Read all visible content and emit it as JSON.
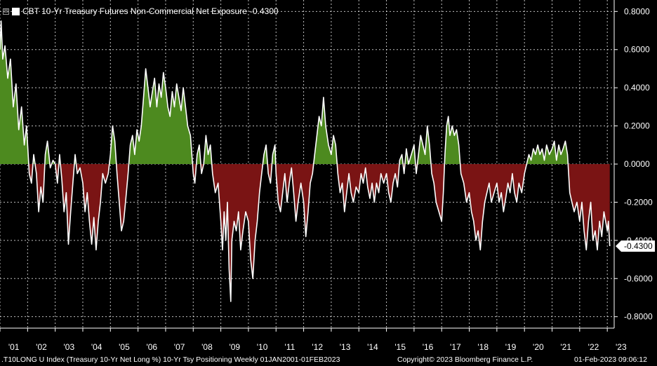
{
  "legend": {
    "checkbox_glyph": "⊞",
    "title": "CBT 10-Yr Treasury Futures Non-Commercial Net Exposure",
    "last_value": "-0.4300"
  },
  "footer": {
    "index": ".T10LONG U Index (Treasury 10-Yr Net Long %) 10-Yr Tsy Positioning  Weekly 01JAN2001-01FEB2023",
    "copyright": "Copyright© 2023 Bloomberg Finance L.P.",
    "timestamp": "01-Feb-2023 09:06:12"
  },
  "colors": {
    "positive_fill": "#4d8a1f",
    "negative_fill": "#7a1414",
    "line": "#ffffff",
    "grid": "#ffffff",
    "background": "#000000"
  },
  "chart_data": {
    "type": "area",
    "title": "CBT 10-Yr Treasury Futures Non-Commercial Net Exposure",
    "last_value_label": "-0.4300",
    "last_value": -0.43,
    "xlabel": "",
    "ylabel": "",
    "xlim": [
      2001.0,
      2023.25
    ],
    "ylim": [
      -0.86,
      0.86
    ],
    "grid": true,
    "y_ticks": [
      0.8,
      0.6,
      0.4,
      0.2,
      0.0,
      -0.2,
      -0.4,
      -0.6,
      -0.8
    ],
    "y_tick_labels": [
      "0.8000",
      "0.6000",
      "0.4000",
      "0.2000",
      "0.0000",
      "-0.2000",
      "-0.4000",
      "-0.6000",
      "-0.8000"
    ],
    "x_tick_labels": [
      "'01",
      "'02",
      "'03",
      "'04",
      "'05",
      "'06",
      "'07",
      "'08",
      "'09",
      "'10",
      "'11",
      "'12",
      "'13",
      "'14",
      "'15",
      "'16",
      "'17",
      "'18",
      "'19",
      "'20",
      "'21",
      "'22",
      "'23"
    ],
    "x_tick_years": [
      2001,
      2002,
      2003,
      2004,
      2005,
      2006,
      2007,
      2008,
      2009,
      2010,
      2011,
      2012,
      2013,
      2014,
      2015,
      2016,
      2017,
      2018,
      2019,
      2020,
      2021,
      2022,
      2023
    ],
    "series": [
      {
        "values": [
          [
            2001.0,
            0.6
          ],
          [
            2001.04,
            0.75
          ],
          [
            2001.1,
            0.55
          ],
          [
            2001.18,
            0.62
          ],
          [
            2001.28,
            0.45
          ],
          [
            2001.38,
            0.55
          ],
          [
            2001.48,
            0.3
          ],
          [
            2001.58,
            0.42
          ],
          [
            2001.68,
            0.18
          ],
          [
            2001.78,
            0.3
          ],
          [
            2001.88,
            0.1
          ],
          [
            2001.96,
            0.2
          ],
          [
            2002.06,
            -0.05
          ],
          [
            2002.14,
            -0.1
          ],
          [
            2002.22,
            0.05
          ],
          [
            2002.32,
            -0.05
          ],
          [
            2002.4,
            -0.25
          ],
          [
            2002.48,
            -0.12
          ],
          [
            2002.56,
            -0.2
          ],
          [
            2002.64,
            0.05
          ],
          [
            2002.72,
            0.12
          ],
          [
            2002.82,
            -0.02
          ],
          [
            2002.92,
            0.02
          ],
          [
            2003.0,
            0.0
          ],
          [
            2003.08,
            -0.1
          ],
          [
            2003.16,
            0.05
          ],
          [
            2003.24,
            -0.08
          ],
          [
            2003.32,
            -0.25
          ],
          [
            2003.4,
            -0.15
          ],
          [
            2003.48,
            -0.42
          ],
          [
            2003.56,
            -0.25
          ],
          [
            2003.64,
            -0.1
          ],
          [
            2003.72,
            0.05
          ],
          [
            2003.8,
            -0.05
          ],
          [
            2003.9,
            -0.02
          ],
          [
            2004.0,
            -0.1
          ],
          [
            2004.08,
            -0.25
          ],
          [
            2004.16,
            -0.15
          ],
          [
            2004.24,
            -0.3
          ],
          [
            2004.32,
            -0.42
          ],
          [
            2004.4,
            -0.28
          ],
          [
            2004.48,
            -0.45
          ],
          [
            2004.56,
            -0.3
          ],
          [
            2004.64,
            -0.2
          ],
          [
            2004.72,
            -0.05
          ],
          [
            2004.82,
            -0.1
          ],
          [
            2004.92,
            -0.05
          ],
          [
            2005.0,
            0.05
          ],
          [
            2005.08,
            0.2
          ],
          [
            2005.16,
            0.12
          ],
          [
            2005.24,
            -0.05
          ],
          [
            2005.32,
            -0.2
          ],
          [
            2005.4,
            -0.35
          ],
          [
            2005.48,
            -0.3
          ],
          [
            2005.56,
            -0.18
          ],
          [
            2005.64,
            -0.05
          ],
          [
            2005.72,
            0.1
          ],
          [
            2005.8,
            0.15
          ],
          [
            2005.88,
            0.05
          ],
          [
            2005.96,
            0.18
          ],
          [
            2006.04,
            0.12
          ],
          [
            2006.12,
            0.2
          ],
          [
            2006.2,
            0.35
          ],
          [
            2006.28,
            0.5
          ],
          [
            2006.36,
            0.4
          ],
          [
            2006.44,
            0.3
          ],
          [
            2006.52,
            0.38
          ],
          [
            2006.6,
            0.45
          ],
          [
            2006.68,
            0.3
          ],
          [
            2006.76,
            0.42
          ],
          [
            2006.84,
            0.35
          ],
          [
            2006.92,
            0.48
          ],
          [
            2007.0,
            0.4
          ],
          [
            2007.08,
            0.3
          ],
          [
            2007.16,
            0.25
          ],
          [
            2007.24,
            0.38
          ],
          [
            2007.32,
            0.3
          ],
          [
            2007.4,
            0.42
          ],
          [
            2007.48,
            0.35
          ],
          [
            2007.56,
            0.28
          ],
          [
            2007.64,
            0.4
          ],
          [
            2007.72,
            0.3
          ],
          [
            2007.8,
            0.2
          ],
          [
            2007.9,
            0.15
          ],
          [
            2008.0,
            -0.05
          ],
          [
            2008.06,
            -0.1
          ],
          [
            2008.14,
            0.05
          ],
          [
            2008.22,
            0.1
          ],
          [
            2008.3,
            -0.05
          ],
          [
            2008.38,
            0.0
          ],
          [
            2008.46,
            0.15
          ],
          [
            2008.54,
            0.05
          ],
          [
            2008.62,
            0.1
          ],
          [
            2008.7,
            -0.05
          ],
          [
            2008.8,
            -0.15
          ],
          [
            2008.9,
            -0.1
          ],
          [
            2009.0,
            -0.3
          ],
          [
            2009.06,
            -0.45
          ],
          [
            2009.12,
            -0.25
          ],
          [
            2009.18,
            -0.4
          ],
          [
            2009.24,
            -0.2
          ],
          [
            2009.3,
            -0.55
          ],
          [
            2009.36,
            -0.72
          ],
          [
            2009.4,
            -0.4
          ],
          [
            2009.48,
            -0.3
          ],
          [
            2009.56,
            -0.35
          ],
          [
            2009.64,
            -0.25
          ],
          [
            2009.72,
            -0.45
          ],
          [
            2009.8,
            -0.35
          ],
          [
            2009.9,
            -0.25
          ],
          [
            2010.0,
            -0.3
          ],
          [
            2010.08,
            -0.5
          ],
          [
            2010.16,
            -0.6
          ],
          [
            2010.24,
            -0.4
          ],
          [
            2010.32,
            -0.3
          ],
          [
            2010.4,
            -0.15
          ],
          [
            2010.48,
            -0.05
          ],
          [
            2010.56,
            0.05
          ],
          [
            2010.64,
            0.1
          ],
          [
            2010.72,
            -0.05
          ],
          [
            2010.8,
            -0.1
          ],
          [
            2010.88,
            0.05
          ],
          [
            2010.96,
            0.1
          ],
          [
            2011.0,
            -0.05
          ],
          [
            2011.08,
            -0.2
          ],
          [
            2011.16,
            -0.25
          ],
          [
            2011.24,
            -0.15
          ],
          [
            2011.32,
            -0.05
          ],
          [
            2011.4,
            -0.2
          ],
          [
            2011.48,
            -0.1
          ],
          [
            2011.56,
            -0.02
          ],
          [
            2011.64,
            -0.15
          ],
          [
            2011.72,
            -0.3
          ],
          [
            2011.8,
            -0.2
          ],
          [
            2011.9,
            -0.1
          ],
          [
            2012.0,
            -0.2
          ],
          [
            2012.08,
            -0.38
          ],
          [
            2012.16,
            -0.25
          ],
          [
            2012.24,
            -0.1
          ],
          [
            2012.32,
            -0.05
          ],
          [
            2012.4,
            0.05
          ],
          [
            2012.48,
            0.15
          ],
          [
            2012.56,
            0.25
          ],
          [
            2012.64,
            0.2
          ],
          [
            2012.72,
            0.35
          ],
          [
            2012.8,
            0.2
          ],
          [
            2012.9,
            0.1
          ],
          [
            2013.0,
            0.05
          ],
          [
            2013.08,
            0.15
          ],
          [
            2013.16,
            0.1
          ],
          [
            2013.24,
            -0.05
          ],
          [
            2013.32,
            -0.15
          ],
          [
            2013.4,
            -0.1
          ],
          [
            2013.48,
            -0.25
          ],
          [
            2013.56,
            -0.15
          ],
          [
            2013.64,
            -0.05
          ],
          [
            2013.72,
            -0.15
          ],
          [
            2013.8,
            -0.2
          ],
          [
            2013.9,
            -0.12
          ],
          [
            2014.0,
            -0.15
          ],
          [
            2014.08,
            -0.05
          ],
          [
            2014.16,
            -0.1
          ],
          [
            2014.24,
            -0.02
          ],
          [
            2014.32,
            -0.12
          ],
          [
            2014.4,
            -0.18
          ],
          [
            2014.48,
            -0.1
          ],
          [
            2014.56,
            -0.2
          ],
          [
            2014.64,
            -0.1
          ],
          [
            2014.72,
            -0.15
          ],
          [
            2014.8,
            -0.05
          ],
          [
            2014.9,
            -0.1
          ],
          [
            2015.0,
            -0.05
          ],
          [
            2015.08,
            -0.15
          ],
          [
            2015.16,
            -0.2
          ],
          [
            2015.24,
            -0.1
          ],
          [
            2015.32,
            -0.05
          ],
          [
            2015.4,
            -0.12
          ],
          [
            2015.48,
            0.02
          ],
          [
            2015.56,
            0.05
          ],
          [
            2015.64,
            -0.05
          ],
          [
            2015.72,
            0.08
          ],
          [
            2015.8,
            0.0
          ],
          [
            2015.9,
            0.05
          ],
          [
            2016.0,
            0.1
          ],
          [
            2016.08,
            -0.05
          ],
          [
            2016.16,
            0.05
          ],
          [
            2016.24,
            0.15
          ],
          [
            2016.32,
            0.1
          ],
          [
            2016.4,
            0.05
          ],
          [
            2016.48,
            0.2
          ],
          [
            2016.56,
            0.1
          ],
          [
            2016.64,
            -0.05
          ],
          [
            2016.72,
            -0.1
          ],
          [
            2016.8,
            -0.2
          ],
          [
            2016.9,
            -0.25
          ],
          [
            2017.0,
            -0.3
          ],
          [
            2017.06,
            -0.15
          ],
          [
            2017.12,
            0.05
          ],
          [
            2017.18,
            0.2
          ],
          [
            2017.24,
            0.25
          ],
          [
            2017.3,
            0.15
          ],
          [
            2017.38,
            0.2
          ],
          [
            2017.46,
            0.15
          ],
          [
            2017.54,
            0.18
          ],
          [
            2017.62,
            0.1
          ],
          [
            2017.7,
            -0.05
          ],
          [
            2017.8,
            -0.1
          ],
          [
            2017.9,
            -0.2
          ],
          [
            2018.0,
            -0.15
          ],
          [
            2018.08,
            -0.25
          ],
          [
            2018.16,
            -0.3
          ],
          [
            2018.24,
            -0.4
          ],
          [
            2018.32,
            -0.35
          ],
          [
            2018.4,
            -0.45
          ],
          [
            2018.48,
            -0.3
          ],
          [
            2018.56,
            -0.2
          ],
          [
            2018.64,
            -0.15
          ],
          [
            2018.72,
            -0.1
          ],
          [
            2018.8,
            -0.2
          ],
          [
            2018.9,
            -0.15
          ],
          [
            2019.0,
            -0.1
          ],
          [
            2019.08,
            -0.2
          ],
          [
            2019.16,
            -0.15
          ],
          [
            2019.24,
            -0.25
          ],
          [
            2019.32,
            -0.18
          ],
          [
            2019.4,
            -0.1
          ],
          [
            2019.48,
            -0.15
          ],
          [
            2019.56,
            -0.05
          ],
          [
            2019.64,
            -0.15
          ],
          [
            2019.72,
            -0.2
          ],
          [
            2019.8,
            -0.1
          ],
          [
            2019.9,
            -0.15
          ],
          [
            2020.0,
            -0.05
          ],
          [
            2020.08,
            0.0
          ],
          [
            2020.16,
            0.05
          ],
          [
            2020.24,
            0.02
          ],
          [
            2020.32,
            0.08
          ],
          [
            2020.4,
            0.05
          ],
          [
            2020.48,
            0.1
          ],
          [
            2020.56,
            0.05
          ],
          [
            2020.64,
            0.08
          ],
          [
            2020.72,
            0.02
          ],
          [
            2020.8,
            0.1
          ],
          [
            2020.9,
            0.05
          ],
          [
            2021.0,
            0.08
          ],
          [
            2021.08,
            0.12
          ],
          [
            2021.16,
            0.02
          ],
          [
            2021.24,
            0.1
          ],
          [
            2021.32,
            0.05
          ],
          [
            2021.4,
            0.08
          ],
          [
            2021.48,
            0.12
          ],
          [
            2021.56,
            0.05
          ],
          [
            2021.64,
            -0.15
          ],
          [
            2021.72,
            -0.2
          ],
          [
            2021.8,
            -0.25
          ],
          [
            2021.9,
            -0.2
          ],
          [
            2022.0,
            -0.3
          ],
          [
            2022.08,
            -0.2
          ],
          [
            2022.16,
            -0.35
          ],
          [
            2022.24,
            -0.45
          ],
          [
            2022.32,
            -0.3
          ],
          [
            2022.4,
            -0.2
          ],
          [
            2022.48,
            -0.4
          ],
          [
            2022.56,
            -0.35
          ],
          [
            2022.64,
            -0.45
          ],
          [
            2022.72,
            -0.3
          ],
          [
            2022.8,
            -0.38
          ],
          [
            2022.88,
            -0.25
          ],
          [
            2022.94,
            -0.3
          ],
          [
            2023.0,
            -0.35
          ],
          [
            2023.04,
            -0.3
          ],
          [
            2023.09,
            -0.43
          ]
        ]
      }
    ]
  }
}
